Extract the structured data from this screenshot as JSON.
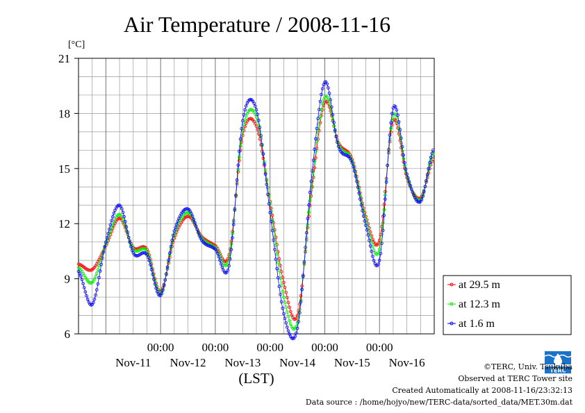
{
  "chart_data": {
    "type": "line",
    "title": "Air Temperature / 2008-11-16",
    "ylabel_unit": "[°C]",
    "xlabel": "(LST)",
    "ylim": [
      6,
      21
    ],
    "yticks": [
      "6",
      "9",
      "12",
      "15",
      "18",
      "21"
    ],
    "x_time_labels": [
      "00:00",
      "00:00",
      "00:00",
      "00:00",
      "00:00"
    ],
    "x_date_labels": [
      "Nov-11",
      "Nov-12",
      "Nov-13",
      "Nov-14",
      "Nov-15",
      "Nov-16"
    ],
    "x": [
      "Nov-10 12:00",
      "Nov-10 18:00",
      "Nov-11 00:00",
      "Nov-11 06:00",
      "Nov-11 12:00",
      "Nov-11 18:00",
      "Nov-12 00:00",
      "Nov-12 06:00",
      "Nov-12 12:00",
      "Nov-12 18:00",
      "Nov-13 00:00",
      "Nov-13 06:00",
      "Nov-13 12:00",
      "Nov-13 18:00",
      "Nov-14 00:00",
      "Nov-14 06:00",
      "Nov-14 12:00",
      "Nov-14 18:00",
      "Nov-15 00:00",
      "Nov-15 06:00",
      "Nov-15 12:00",
      "Nov-15 18:00",
      "Nov-16 00:00",
      "Nov-16 06:00",
      "Nov-16 12:00",
      "Nov-16 18:00",
      "Nov-16 23:30"
    ],
    "series": [
      {
        "name": "at 29.5 m",
        "color": "#ff0000",
        "values": [
          9.8,
          9.5,
          10.8,
          12.3,
          10.7,
          10.6,
          8.3,
          11.2,
          12.4,
          11.3,
          10.8,
          10.3,
          16.8,
          17.3,
          13.2,
          8.8,
          7.0,
          13.5,
          18.6,
          16.4,
          15.5,
          12.4,
          11.1,
          17.6,
          14.5,
          13.4,
          15.5
        ]
      },
      {
        "name": "at 12.3 m",
        "color": "#00ee00",
        "values": [
          9.6,
          8.8,
          10.9,
          12.5,
          10.6,
          10.5,
          8.2,
          11.4,
          12.6,
          11.2,
          10.7,
          10.1,
          17.1,
          17.8,
          13.1,
          8.0,
          6.6,
          13.8,
          18.9,
          16.3,
          15.4,
          12.2,
          10.6,
          17.9,
          14.6,
          13.3,
          15.8
        ]
      },
      {
        "name": "at 1.6 m",
        "color": "#0000ff",
        "values": [
          9.4,
          7.6,
          11.0,
          13.0,
          10.4,
          10.3,
          8.1,
          11.6,
          12.8,
          11.1,
          10.6,
          9.7,
          17.6,
          18.2,
          12.6,
          7.1,
          6.3,
          14.3,
          19.7,
          16.2,
          15.3,
          11.9,
          10.0,
          18.3,
          14.7,
          13.2,
          16.0
        ]
      }
    ]
  },
  "credits": {
    "copyright": "©TERC, Univ. Tsukuba",
    "observed": "Observed at TERC Tower site",
    "created": "Created Automatically at 2008-11-16/23:32:13",
    "source": "Data source : /home/hojyo/new/TERC-data/sorted_data/MET.30m.dat"
  },
  "logo": {
    "text": "TERC",
    "color": "#1a73c9"
  }
}
